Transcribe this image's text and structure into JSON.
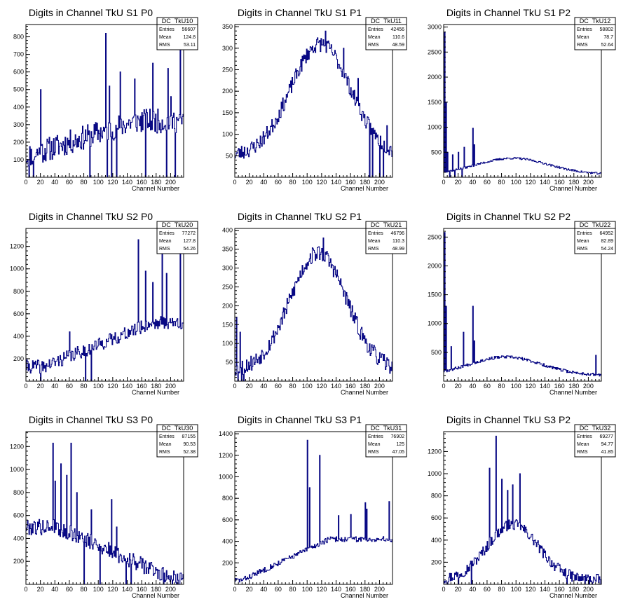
{
  "chart_data": [
    {
      "type": "histogram",
      "title": "Digits in Channel TkU S1 P0",
      "xlabel": "Channel Number",
      "ylabel": "",
      "xlim": [
        0,
        218
      ],
      "ylim": [
        0,
        870
      ],
      "x_ticks": [
        0,
        20,
        40,
        60,
        80,
        100,
        120,
        140,
        160,
        180,
        200
      ],
      "y_ticks": [
        100,
        200,
        300,
        400,
        500,
        600,
        700,
        800
      ],
      "stats": {
        "name": "DC_TkU10",
        "rows": [
          [
            "Entries",
            "56607"
          ],
          [
            "Mean",
            "124.8"
          ],
          [
            "RMS",
            "53.11"
          ]
        ]
      },
      "gen": {
        "shape": "rising",
        "base": 80,
        "peak": 320,
        "center": 150,
        "width": 180,
        "noise": 70,
        "seed": 11,
        "spikes": [
          [
            20,
            500
          ],
          [
            110,
            820
          ],
          [
            115,
            520
          ],
          [
            130,
            600
          ],
          [
            150,
            560
          ],
          [
            175,
            650
          ],
          [
            196,
            620
          ],
          [
            200,
            460
          ],
          [
            213,
            820
          ]
        ],
        "dips": [
          [
            4,
            0
          ],
          [
            10,
            0
          ],
          [
            88,
            0
          ],
          [
            112,
            0
          ],
          [
            118,
            0
          ],
          [
            125,
            0
          ],
          [
            165,
            0
          ],
          [
            194,
            0
          ],
          [
            206,
            0
          ]
        ]
      }
    },
    {
      "type": "histogram",
      "title": "Digits in Channel TkU S1 P1",
      "xlabel": "Channel Number",
      "ylabel": "",
      "xlim": [
        0,
        218
      ],
      "ylim": [
        0,
        355
      ],
      "x_ticks": [
        0,
        20,
        40,
        60,
        80,
        100,
        120,
        140,
        160,
        180,
        200
      ],
      "y_ticks": [
        50,
        100,
        150,
        200,
        250,
        300,
        350
      ],
      "stats": {
        "name": "DC_TkU11",
        "rows": [
          [
            "Entries",
            "42456"
          ],
          [
            "Mean",
            "110.6"
          ],
          [
            "RMS",
            "48.59"
          ]
        ]
      },
      "gen": {
        "shape": "gauss",
        "base": 50,
        "peak": 310,
        "center": 118,
        "width": 58,
        "noise": 18,
        "seed": 23,
        "spikes": [
          [
            125,
            340
          ],
          [
            150,
            300
          ],
          [
            170,
            230
          ],
          [
            210,
            120
          ]
        ],
        "dips": [
          [
            186,
            0
          ],
          [
            190,
            0
          ],
          [
            200,
            0
          ],
          [
            205,
            0
          ]
        ]
      }
    },
    {
      "type": "histogram",
      "title": "Digits in Channel TkU S1 P2",
      "xlabel": "Channel Number",
      "ylabel": "",
      "xlim": [
        0,
        218
      ],
      "ylim": [
        0,
        3050
      ],
      "x_ticks": [
        0,
        20,
        40,
        60,
        80,
        100,
        120,
        140,
        160,
        180,
        200
      ],
      "y_ticks": [
        500,
        1000,
        1500,
        2000,
        2500,
        3000
      ],
      "stats": {
        "name": "DC_TkU12",
        "rows": [
          [
            "Entries",
            "58802"
          ],
          [
            "Mean",
            "78.7"
          ],
          [
            "RMS",
            "52.64"
          ]
        ]
      },
      "gen": {
        "shape": "gauss",
        "base": 60,
        "peak": 380,
        "center": 95,
        "width": 70,
        "noise": 20,
        "seed": 37,
        "spikes": [
          [
            1,
            2900
          ],
          [
            3,
            1500
          ],
          [
            5,
            500
          ],
          [
            12,
            450
          ],
          [
            20,
            500
          ],
          [
            28,
            600
          ],
          [
            40,
            980
          ],
          [
            42,
            650
          ]
        ],
        "dips": [
          [
            8,
            0
          ],
          [
            15,
            0
          ],
          [
            25,
            0
          ]
        ]
      }
    },
    {
      "type": "histogram",
      "title": "Digits in Channel TkU S2 P0",
      "xlabel": "Channel Number",
      "ylabel": "",
      "xlim": [
        0,
        218
      ],
      "ylim": [
        0,
        1360
      ],
      "x_ticks": [
        0,
        20,
        40,
        60,
        80,
        100,
        120,
        140,
        160,
        180,
        200
      ],
      "y_ticks": [
        200,
        400,
        600,
        800,
        1000,
        1200
      ],
      "stats": {
        "name": "DC_TkU20",
        "rows": [
          [
            "Entries",
            "77272"
          ],
          [
            "Mean",
            "127.8"
          ],
          [
            "RMS",
            "54.26"
          ]
        ]
      },
      "gen": {
        "shape": "rising",
        "base": 130,
        "peak": 520,
        "center": 175,
        "width": 150,
        "noise": 60,
        "seed": 41,
        "spikes": [
          [
            60,
            440
          ],
          [
            155,
            1260
          ],
          [
            165,
            980
          ],
          [
            175,
            880
          ],
          [
            188,
            1240
          ],
          [
            194,
            960
          ],
          [
            213,
            1200
          ]
        ],
        "dips": [
          [
            20,
            0
          ],
          [
            82,
            0
          ],
          [
            90,
            0
          ]
        ]
      }
    },
    {
      "type": "histogram",
      "title": "Digits in Channel TkU S2 P1",
      "xlabel": "Channel Number",
      "ylabel": "",
      "xlim": [
        0,
        218
      ],
      "ylim": [
        0,
        405
      ],
      "x_ticks": [
        0,
        20,
        40,
        60,
        80,
        100,
        120,
        140,
        160,
        180,
        200
      ],
      "y_ticks": [
        50,
        100,
        150,
        200,
        250,
        300,
        350,
        400
      ],
      "stats": {
        "name": "DC_TkU21",
        "rows": [
          [
            "Entries",
            "46796"
          ],
          [
            "Mean",
            "110.3"
          ],
          [
            "RMS",
            "48.99"
          ]
        ]
      },
      "gen": {
        "shape": "gauss",
        "base": 30,
        "peak": 340,
        "center": 115,
        "width": 55,
        "noise": 22,
        "seed": 53,
        "spikes": [
          [
            2,
            170
          ],
          [
            7,
            130
          ],
          [
            122,
            380
          ]
        ],
        "dips": [
          [
            4,
            0
          ],
          [
            9,
            0
          ],
          [
            12,
            0
          ]
        ]
      }
    },
    {
      "type": "histogram",
      "title": "Digits in Channel TkU S2 P2",
      "xlabel": "Channel Number",
      "ylabel": "",
      "xlim": [
        0,
        218
      ],
      "ylim": [
        0,
        2650
      ],
      "x_ticks": [
        0,
        20,
        40,
        60,
        80,
        100,
        120,
        140,
        160,
        180,
        200
      ],
      "y_ticks": [
        500,
        1000,
        1500,
        2000,
        2500
      ],
      "stats": {
        "name": "DC_TkU22",
        "rows": [
          [
            "Entries",
            "64952"
          ],
          [
            "Mean",
            "82.89"
          ],
          [
            "RMS",
            "54.24"
          ]
        ]
      },
      "gen": {
        "shape": "gauss",
        "base": 100,
        "peak": 420,
        "center": 85,
        "width": 70,
        "noise": 25,
        "seed": 67,
        "spikes": [
          [
            1,
            2580
          ],
          [
            3,
            1300
          ],
          [
            10,
            600
          ],
          [
            27,
            850
          ],
          [
            40,
            1300
          ],
          [
            42,
            700
          ],
          [
            210,
            450
          ]
        ],
        "dips": []
      }
    },
    {
      "type": "histogram",
      "title": "Digits in Channel TkU S3 P0",
      "xlabel": "Channel Number",
      "ylabel": "",
      "xlim": [
        0,
        218
      ],
      "ylim": [
        0,
        1330
      ],
      "x_ticks": [
        0,
        20,
        40,
        60,
        80,
        100,
        120,
        140,
        160,
        180,
        200
      ],
      "y_ticks": [
        200,
        400,
        600,
        800,
        1000,
        1200
      ],
      "stats": {
        "name": "DC_TkU30",
        "rows": [
          [
            "Entries",
            "87155"
          ],
          [
            "Mean",
            "90.53"
          ],
          [
            "RMS",
            "52.38"
          ]
        ]
      },
      "gen": {
        "shape": "falling",
        "base": 60,
        "peak": 500,
        "center": 40,
        "width": 160,
        "noise": 70,
        "seed": 79,
        "spikes": [
          [
            37,
            1230
          ],
          [
            40,
            900
          ],
          [
            48,
            1050
          ],
          [
            56,
            950
          ],
          [
            62,
            1230
          ],
          [
            70,
            800
          ],
          [
            90,
            650
          ],
          [
            118,
            740
          ],
          [
            125,
            500
          ]
        ],
        "dips": [
          [
            80,
            0
          ],
          [
            102,
            0
          ],
          [
            138,
            0
          ],
          [
            145,
            0
          ],
          [
            190,
            0
          ]
        ]
      }
    },
    {
      "type": "histogram",
      "title": "Digits in Channel TkU S3 P1",
      "xlabel": "Channel Number",
      "ylabel": "",
      "xlim": [
        0,
        218
      ],
      "ylim": [
        0,
        1420
      ],
      "x_ticks": [
        0,
        20,
        40,
        60,
        80,
        100,
        120,
        140,
        160,
        180,
        200
      ],
      "y_ticks": [
        200,
        400,
        600,
        800,
        1000,
        1200,
        1400
      ],
      "stats": {
        "name": "DC_TkU31",
        "rows": [
          [
            "Entries",
            "76902"
          ],
          [
            "Mean",
            "125"
          ],
          [
            "RMS",
            "47.05"
          ]
        ]
      },
      "gen": {
        "shape": "rising",
        "base": 40,
        "peak": 420,
        "center": 130,
        "width": 120,
        "noise": 25,
        "seed": 83,
        "spikes": [
          [
            100,
            1340
          ],
          [
            103,
            900
          ],
          [
            117,
            1200
          ],
          [
            143,
            640
          ],
          [
            160,
            650
          ],
          [
            180,
            760
          ],
          [
            182,
            700
          ],
          [
            213,
            770
          ]
        ],
        "dips": []
      }
    },
    {
      "type": "histogram",
      "title": "Digits in Channel TkU S3 P2",
      "xlabel": "Channel Number",
      "ylabel": "",
      "xlim": [
        0,
        218
      ],
      "ylim": [
        0,
        1380
      ],
      "x_ticks": [
        0,
        20,
        40,
        60,
        80,
        100,
        120,
        140,
        160,
        180,
        200
      ],
      "y_ticks": [
        200,
        400,
        600,
        800,
        1000,
        1200
      ],
      "stats": {
        "name": "DC_TkU32",
        "rows": [
          [
            "Entries",
            "69277"
          ],
          [
            "Mean",
            "94.77"
          ],
          [
            "RMS",
            "41.85"
          ]
        ]
      },
      "gen": {
        "shape": "gauss",
        "base": 40,
        "peak": 540,
        "center": 95,
        "width": 50,
        "noise": 50,
        "seed": 97,
        "spikes": [
          [
            63,
            1050
          ],
          [
            72,
            1340
          ],
          [
            80,
            950
          ],
          [
            88,
            850
          ],
          [
            95,
            900
          ],
          [
            105,
            1000
          ]
        ],
        "dips": [
          [
            5,
            0
          ],
          [
            20,
            0
          ],
          [
            38,
            0
          ],
          [
            170,
            0
          ]
        ]
      }
    }
  ]
}
